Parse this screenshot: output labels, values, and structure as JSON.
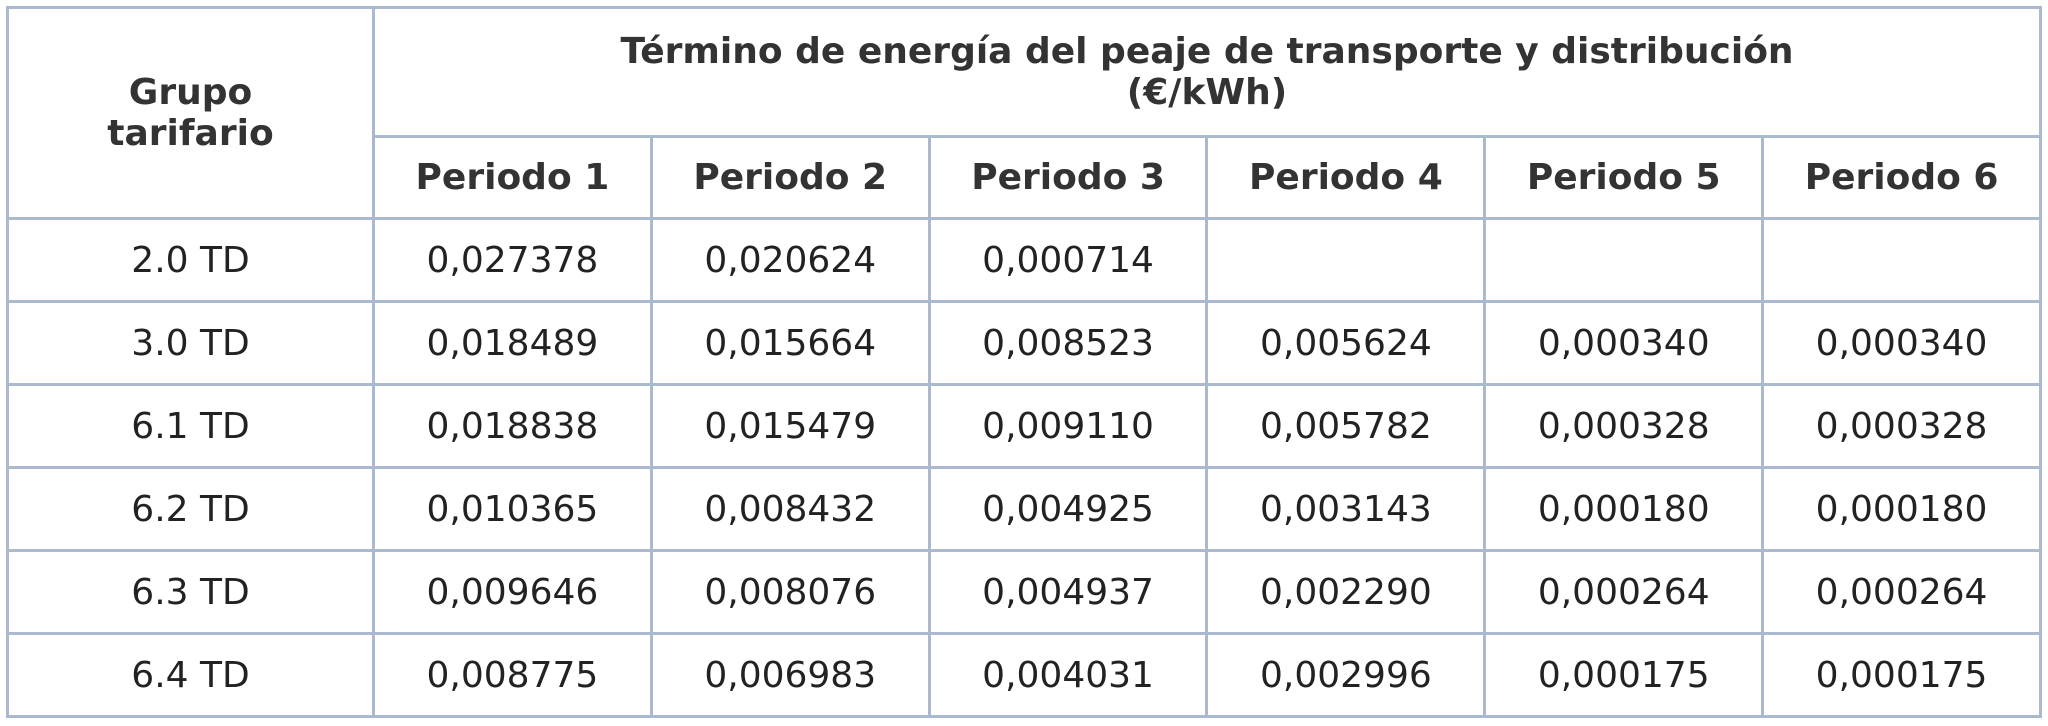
{
  "table": {
    "header": {
      "group": "Grupo tarifario",
      "title": "Término de energía del peaje de transporte y distribución",
      "unit": "(€/kWh)",
      "periods": [
        "Periodo 1",
        "Periodo 2",
        "Periodo 3",
        "Periodo 4",
        "Periodo 5",
        "Periodo 6"
      ]
    },
    "rows": [
      {
        "group": "2.0 TD",
        "values": [
          "0,027378",
          "0,020624",
          "0,000714"
        ]
      },
      {
        "group": "3.0 TD",
        "values": [
          "0,018489",
          "0,015664",
          "0,008523",
          "0,005624",
          "0,000340",
          "0,000340"
        ]
      },
      {
        "group": "6.1 TD",
        "values": [
          "0,018838",
          "0,015479",
          "0,009110",
          "0,005782",
          "0,000328",
          "0,000328"
        ]
      },
      {
        "group": "6.2 TD",
        "values": [
          "0,010365",
          "0,008432",
          "0,004925",
          "0,003143",
          "0,000180",
          "0,000180"
        ]
      },
      {
        "group": "6.3 TD",
        "values": [
          "0,009646",
          "0,008076",
          "0,004937",
          "0,002290",
          "0,000264",
          "0,000264"
        ]
      },
      {
        "group": "6.4 TD",
        "values": [
          "0,008775",
          "0,006983",
          "0,004031",
          "0,002996",
          "0,000175",
          "0,000175"
        ]
      }
    ]
  }
}
